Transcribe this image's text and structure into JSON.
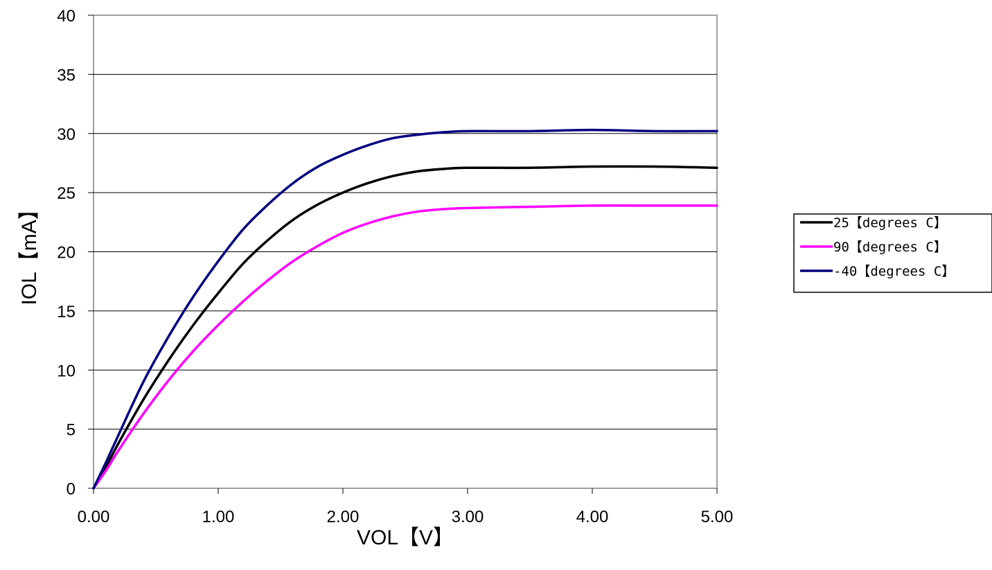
{
  "chart_data": {
    "type": "line",
    "title": "",
    "xlabel": "VOL【V】",
    "ylabel": "IOL【mA】",
    "xlim": [
      0,
      5
    ],
    "ylim": [
      0,
      40
    ],
    "x_ticks": [
      "0.00",
      "1.00",
      "2.00",
      "3.00",
      "4.00",
      "5.00"
    ],
    "y_ticks": [
      "0",
      "5",
      "10",
      "15",
      "20",
      "25",
      "30",
      "35",
      "40"
    ],
    "grid": "horizontal",
    "legend_position": "right",
    "series": [
      {
        "name": "25【degrees C】",
        "color": "#000000",
        "x": [
          0,
          0.1,
          0.2,
          0.4,
          0.6,
          0.8,
          1.0,
          1.2,
          1.4,
          1.6,
          1.8,
          2.0,
          2.2,
          2.4,
          2.6,
          2.8,
          3.0,
          3.5,
          4.0,
          4.5,
          5.0
        ],
        "y": [
          0,
          1.8,
          3.8,
          7.5,
          10.8,
          13.8,
          16.5,
          19.0,
          21.0,
          22.7,
          24.0,
          25.0,
          25.8,
          26.4,
          26.8,
          27.0,
          27.1,
          27.1,
          27.2,
          27.2,
          27.1
        ]
      },
      {
        "name": "90【degrees C】",
        "color": "#ff00ff",
        "x": [
          0,
          0.1,
          0.2,
          0.4,
          0.6,
          0.8,
          1.0,
          1.2,
          1.4,
          1.6,
          1.8,
          2.0,
          2.2,
          2.4,
          2.6,
          2.8,
          3.0,
          3.5,
          4.0,
          4.5,
          5.0
        ],
        "y": [
          0,
          1.5,
          3.2,
          6.3,
          9.1,
          11.6,
          13.8,
          15.8,
          17.6,
          19.2,
          20.5,
          21.6,
          22.4,
          23.0,
          23.4,
          23.6,
          23.7,
          23.8,
          23.9,
          23.9,
          23.9
        ]
      },
      {
        "name": "-40【degrees C】",
        "color": "#000080",
        "x": [
          0,
          0.1,
          0.2,
          0.4,
          0.6,
          0.8,
          1.0,
          1.2,
          1.4,
          1.6,
          1.8,
          2.0,
          2.2,
          2.4,
          2.6,
          2.8,
          3.0,
          3.5,
          4.0,
          4.5,
          5.0
        ],
        "y": [
          0,
          2.2,
          4.5,
          9.0,
          12.8,
          16.2,
          19.2,
          21.9,
          24.0,
          25.8,
          27.2,
          28.2,
          29.0,
          29.6,
          29.9,
          30.1,
          30.2,
          30.2,
          30.3,
          30.2,
          30.2
        ]
      }
    ]
  }
}
